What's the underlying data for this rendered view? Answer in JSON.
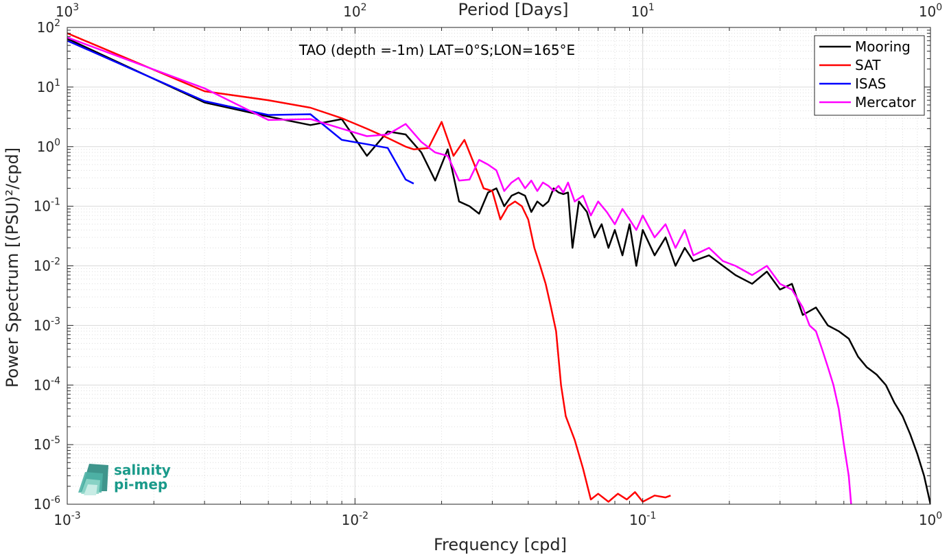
{
  "chart_data": {
    "type": "line",
    "title": "TAO (depth =-1m) LAT=0°S;LON=165°E",
    "xlabel": "Frequency [cpd]",
    "ylabel": "Power Spectrum [(PSU)²/cpd]",
    "top_axis_label": "Period [Days]",
    "x_scale": "log",
    "y_scale": "log",
    "xlim": [
      0.001,
      1
    ],
    "ylim": [
      1e-06,
      100
    ],
    "grid": true,
    "minor_grid": true,
    "legend_position": "top-right",
    "x_ticks": [
      "10^-3",
      "10^-2",
      "10^-1",
      "10^0"
    ],
    "top_ticks": [
      "10^3",
      "10^2",
      "10^1",
      "10^0"
    ],
    "y_ticks": [
      "10^-6",
      "10^-5",
      "10^-4",
      "10^-3",
      "10^-2",
      "10^-1",
      "10^0",
      "10^1",
      "10^2"
    ],
    "series": [
      {
        "name": "Mooring",
        "color": "#000000",
        "points": [
          [
            0.001,
            65
          ],
          [
            0.003,
            5.5
          ],
          [
            0.005,
            3.2
          ],
          [
            0.007,
            2.3
          ],
          [
            0.009,
            2.9
          ],
          [
            0.011,
            0.7
          ],
          [
            0.013,
            1.8
          ],
          [
            0.015,
            1.6
          ],
          [
            0.017,
            0.8
          ],
          [
            0.019,
            0.27
          ],
          [
            0.021,
            0.9
          ],
          [
            0.023,
            0.12
          ],
          [
            0.025,
            0.1
          ],
          [
            0.027,
            0.075
          ],
          [
            0.029,
            0.17
          ],
          [
            0.031,
            0.2
          ],
          [
            0.033,
            0.1
          ],
          [
            0.035,
            0.15
          ],
          [
            0.037,
            0.17
          ],
          [
            0.039,
            0.15
          ],
          [
            0.041,
            0.08
          ],
          [
            0.043,
            0.12
          ],
          [
            0.045,
            0.1
          ],
          [
            0.047,
            0.12
          ],
          [
            0.049,
            0.2
          ],
          [
            0.051,
            0.17
          ],
          [
            0.053,
            0.16
          ],
          [
            0.055,
            0.17
          ],
          [
            0.057,
            0.02
          ],
          [
            0.06,
            0.12
          ],
          [
            0.064,
            0.08
          ],
          [
            0.068,
            0.03
          ],
          [
            0.072,
            0.05
          ],
          [
            0.076,
            0.02
          ],
          [
            0.08,
            0.04
          ],
          [
            0.085,
            0.015
          ],
          [
            0.09,
            0.05
          ],
          [
            0.095,
            0.01
          ],
          [
            0.1,
            0.04
          ],
          [
            0.11,
            0.015
          ],
          [
            0.12,
            0.03
          ],
          [
            0.13,
            0.01
          ],
          [
            0.14,
            0.02
          ],
          [
            0.15,
            0.012
          ],
          [
            0.17,
            0.015
          ],
          [
            0.19,
            0.01
          ],
          [
            0.21,
            0.007
          ],
          [
            0.24,
            0.005
          ],
          [
            0.27,
            0.008
          ],
          [
            0.3,
            0.004
          ],
          [
            0.33,
            0.005
          ],
          [
            0.36,
            0.0015
          ],
          [
            0.4,
            0.002
          ],
          [
            0.44,
            0.001
          ],
          [
            0.48,
            0.0008
          ],
          [
            0.52,
            0.0006
          ],
          [
            0.56,
            0.0003
          ],
          [
            0.6,
            0.0002
          ],
          [
            0.65,
            0.00015
          ],
          [
            0.7,
            0.0001
          ],
          [
            0.75,
            5e-05
          ],
          [
            0.8,
            3e-05
          ],
          [
            0.85,
            1.5e-05
          ],
          [
            0.9,
            7e-06
          ],
          [
            0.95,
            3e-06
          ],
          [
            1.0,
            1e-06
          ]
        ]
      },
      {
        "name": "SAT",
        "color": "#ff0000",
        "points": [
          [
            0.001,
            80
          ],
          [
            0.003,
            8.5
          ],
          [
            0.005,
            6.0
          ],
          [
            0.007,
            4.5
          ],
          [
            0.009,
            3.0
          ],
          [
            0.011,
            2.0
          ],
          [
            0.013,
            1.4
          ],
          [
            0.015,
            1.0
          ],
          [
            0.016,
            0.9
          ],
          [
            0.018,
            0.95
          ],
          [
            0.02,
            2.6
          ],
          [
            0.022,
            0.7
          ],
          [
            0.024,
            1.3
          ],
          [
            0.026,
            0.5
          ],
          [
            0.028,
            0.2
          ],
          [
            0.03,
            0.18
          ],
          [
            0.032,
            0.06
          ],
          [
            0.034,
            0.1
          ],
          [
            0.036,
            0.12
          ],
          [
            0.038,
            0.1
          ],
          [
            0.04,
            0.06
          ],
          [
            0.042,
            0.02
          ],
          [
            0.044,
            0.01
          ],
          [
            0.046,
            0.005
          ],
          [
            0.048,
            0.002
          ],
          [
            0.05,
            0.0008
          ],
          [
            0.052,
            0.0001
          ],
          [
            0.054,
            3e-05
          ],
          [
            0.058,
            1.2e-05
          ],
          [
            0.062,
            4e-06
          ],
          [
            0.066,
            1.2e-06
          ],
          [
            0.07,
            1.5e-06
          ],
          [
            0.076,
            1.1e-06
          ],
          [
            0.082,
            1.5e-06
          ],
          [
            0.088,
            1.2e-06
          ],
          [
            0.094,
            1.6e-06
          ],
          [
            0.1,
            1.1e-06
          ],
          [
            0.11,
            1.4e-06
          ],
          [
            0.12,
            1.3e-06
          ],
          [
            0.125,
            1.4e-06
          ]
        ]
      },
      {
        "name": "ISAS",
        "color": "#0000ff",
        "points": [
          [
            0.001,
            60
          ],
          [
            0.003,
            5.8
          ],
          [
            0.005,
            3.4
          ],
          [
            0.007,
            3.5
          ],
          [
            0.009,
            1.3
          ],
          [
            0.011,
            1.1
          ],
          [
            0.013,
            0.95
          ],
          [
            0.015,
            0.28
          ],
          [
            0.016,
            0.24
          ]
        ]
      },
      {
        "name": "Mercator",
        "color": "#ff00ff",
        "points": [
          [
            0.001,
            68
          ],
          [
            0.003,
            9.5
          ],
          [
            0.005,
            2.8
          ],
          [
            0.007,
            2.9
          ],
          [
            0.009,
            2.0
          ],
          [
            0.011,
            1.5
          ],
          [
            0.013,
            1.6
          ],
          [
            0.015,
            2.4
          ],
          [
            0.017,
            1.2
          ],
          [
            0.019,
            0.8
          ],
          [
            0.021,
            0.7
          ],
          [
            0.023,
            0.27
          ],
          [
            0.025,
            0.28
          ],
          [
            0.027,
            0.6
          ],
          [
            0.029,
            0.5
          ],
          [
            0.031,
            0.4
          ],
          [
            0.033,
            0.18
          ],
          [
            0.035,
            0.25
          ],
          [
            0.037,
            0.3
          ],
          [
            0.039,
            0.2
          ],
          [
            0.041,
            0.27
          ],
          [
            0.043,
            0.18
          ],
          [
            0.045,
            0.25
          ],
          [
            0.047,
            0.22
          ],
          [
            0.049,
            0.18
          ],
          [
            0.051,
            0.22
          ],
          [
            0.053,
            0.17
          ],
          [
            0.055,
            0.25
          ],
          [
            0.058,
            0.12
          ],
          [
            0.062,
            0.15
          ],
          [
            0.066,
            0.07
          ],
          [
            0.07,
            0.12
          ],
          [
            0.075,
            0.08
          ],
          [
            0.08,
            0.05
          ],
          [
            0.085,
            0.09
          ],
          [
            0.09,
            0.06
          ],
          [
            0.095,
            0.04
          ],
          [
            0.1,
            0.07
          ],
          [
            0.11,
            0.03
          ],
          [
            0.12,
            0.05
          ],
          [
            0.13,
            0.02
          ],
          [
            0.14,
            0.04
          ],
          [
            0.15,
            0.015
          ],
          [
            0.17,
            0.02
          ],
          [
            0.19,
            0.012
          ],
          [
            0.21,
            0.01
          ],
          [
            0.24,
            0.007
          ],
          [
            0.27,
            0.01
          ],
          [
            0.3,
            0.005
          ],
          [
            0.33,
            0.004
          ],
          [
            0.36,
            0.002
          ],
          [
            0.38,
            0.001
          ],
          [
            0.4,
            0.0008
          ],
          [
            0.42,
            0.0004
          ],
          [
            0.44,
            0.0002
          ],
          [
            0.46,
            0.0001
          ],
          [
            0.48,
            4e-05
          ],
          [
            0.5,
            1e-05
          ],
          [
            0.52,
            3e-06
          ],
          [
            0.53,
            1e-06
          ]
        ]
      }
    ]
  },
  "logo": {
    "line1": "salinity",
    "line2": "pi-mep",
    "color": "#1a9a8a"
  }
}
